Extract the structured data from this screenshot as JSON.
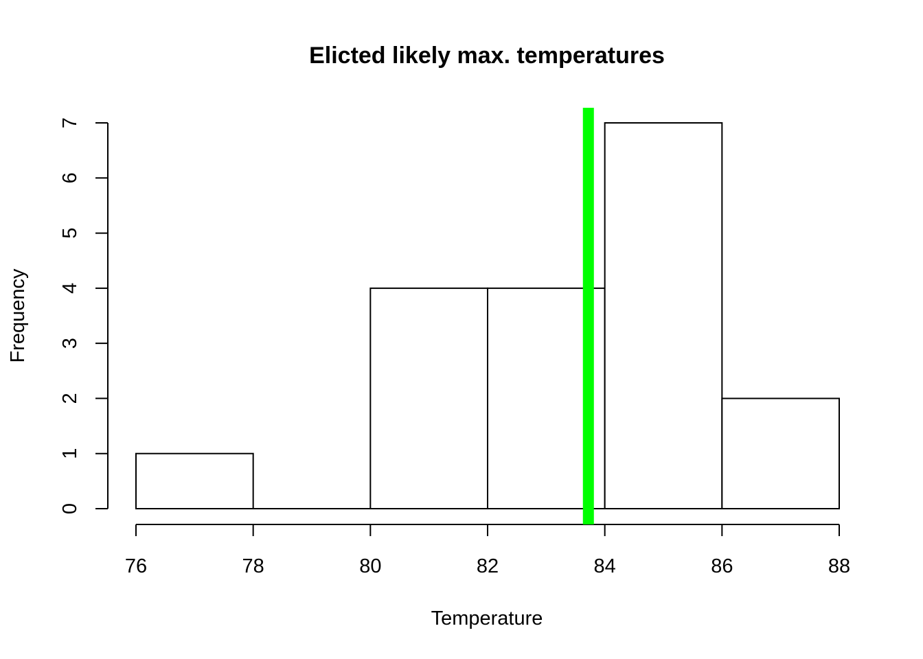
{
  "chart_data": {
    "type": "bar",
    "title": "Elicted likely max. temperatures",
    "xlabel": "Temperature",
    "ylabel": "Frequency",
    "bins": [
      {
        "from": 76,
        "to": 78,
        "count": 1
      },
      {
        "from": 78,
        "to": 80,
        "count": 0
      },
      {
        "from": 80,
        "to": 82,
        "count": 4
      },
      {
        "from": 82,
        "to": 84,
        "count": 4
      },
      {
        "from": 84,
        "to": 86,
        "count": 7
      },
      {
        "from": 86,
        "to": 88,
        "count": 2
      }
    ],
    "xlim": [
      76,
      88
    ],
    "ylim": [
      0,
      7
    ],
    "x_ticks": [
      76,
      78,
      80,
      82,
      84,
      86,
      88
    ],
    "y_ticks": [
      0,
      1,
      2,
      3,
      4,
      5,
      6,
      7
    ],
    "vline": {
      "x": 83.72,
      "color": "#00ff00"
    },
    "bar_fill": "#ffffff",
    "bar_stroke": "#000000"
  }
}
